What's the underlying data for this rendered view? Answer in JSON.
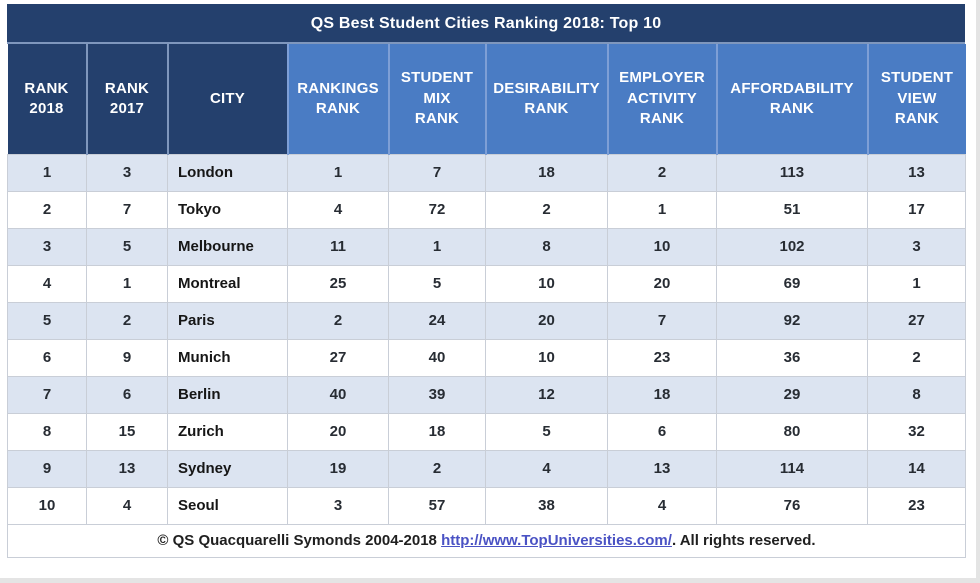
{
  "title": "QS Best Student Cities Ranking 2018: Top 10",
  "colors": {
    "navy": "#24406d",
    "header_blue": "#4a7cc4",
    "row_alt": "#dce4f1",
    "row_white": "#ffffff",
    "grid_border": "#c9ced7",
    "link": "#4a52c4"
  },
  "table": {
    "columns": [
      {
        "key": "rank-2018",
        "label": "RANK\n2018",
        "group": "dark"
      },
      {
        "key": "rank-2017",
        "label": "RANK\n2017",
        "group": "dark"
      },
      {
        "key": "city",
        "label": "CITY",
        "group": "dark"
      },
      {
        "key": "rankings-rank",
        "label": "RANKINGS\nRANK",
        "group": "blue"
      },
      {
        "key": "student-mix-rank",
        "label": "STUDENT\nMIX\nRANK",
        "group": "blue"
      },
      {
        "key": "desirability-rank",
        "label": "DESIRABILITY\nRANK",
        "group": "blue"
      },
      {
        "key": "employer-activity-rank",
        "label": "EMPLOYER\nACTIVITY\nRANK",
        "group": "blue"
      },
      {
        "key": "affordability-rank",
        "label": "AFFORDABILITY\nRANK",
        "group": "blue"
      },
      {
        "key": "student-view-rank",
        "label": "STUDENT\nVIEW\nRANK",
        "group": "blue"
      }
    ],
    "rows": [
      [
        "1",
        "3",
        "London",
        "1",
        "7",
        "18",
        "2",
        "113",
        "13"
      ],
      [
        "2",
        "7",
        "Tokyo",
        "4",
        "72",
        "2",
        "1",
        "51",
        "17"
      ],
      [
        "3",
        "5",
        "Melbourne",
        "11",
        "1",
        "8",
        "10",
        "102",
        "3"
      ],
      [
        "4",
        "1",
        "Montreal",
        "25",
        "5",
        "10",
        "20",
        "69",
        "1"
      ],
      [
        "5",
        "2",
        "Paris",
        "2",
        "24",
        "20",
        "7",
        "92",
        "27"
      ],
      [
        "6",
        "9",
        "Munich",
        "27",
        "40",
        "10",
        "23",
        "36",
        "2"
      ],
      [
        "7",
        "6",
        "Berlin",
        "40",
        "39",
        "12",
        "18",
        "29",
        "8"
      ],
      [
        "8",
        "15",
        "Zurich",
        "20",
        "18",
        "5",
        "6",
        "80",
        "32"
      ],
      [
        "9",
        "13",
        "Sydney",
        "19",
        "2",
        "4",
        "13",
        "114",
        "14"
      ],
      [
        "10",
        "4",
        "Seoul",
        "3",
        "57",
        "38",
        "4",
        "76",
        "23"
      ]
    ]
  },
  "footer": {
    "prefix": "© QS Quacquarelli Symonds 2004-2018 ",
    "link_text": "http://www.TopUniversities.com/",
    "suffix": ". All rights reserved."
  },
  "chart_data": {
    "type": "table",
    "title": "QS Best Student Cities Ranking 2018: Top 10",
    "columns": [
      "RANK 2018",
      "RANK 2017",
      "CITY",
      "RANKINGS RANK",
      "STUDENT MIX RANK",
      "DESIRABILITY RANK",
      "EMPLOYER ACTIVITY RANK",
      "AFFORDABILITY RANK",
      "STUDENT VIEW RANK"
    ],
    "rows": [
      [
        1,
        3,
        "London",
        1,
        7,
        18,
        2,
        113,
        13
      ],
      [
        2,
        7,
        "Tokyo",
        4,
        72,
        2,
        1,
        51,
        17
      ],
      [
        3,
        5,
        "Melbourne",
        11,
        1,
        8,
        10,
        102,
        3
      ],
      [
        4,
        1,
        "Montreal",
        25,
        5,
        10,
        20,
        69,
        1
      ],
      [
        5,
        2,
        "Paris",
        2,
        24,
        20,
        7,
        92,
        27
      ],
      [
        6,
        9,
        "Munich",
        27,
        40,
        10,
        23,
        36,
        2
      ],
      [
        7,
        6,
        "Berlin",
        40,
        39,
        12,
        18,
        29,
        8
      ],
      [
        8,
        15,
        "Zurich",
        20,
        18,
        5,
        6,
        80,
        32
      ],
      [
        9,
        13,
        "Sydney",
        19,
        2,
        4,
        13,
        114,
        14
      ],
      [
        10,
        4,
        "Seoul",
        3,
        57,
        38,
        4,
        76,
        23
      ]
    ],
    "footer_note": "© QS Quacquarelli Symonds 2004-2018 http://www.TopUniversities.com/. All rights reserved."
  }
}
